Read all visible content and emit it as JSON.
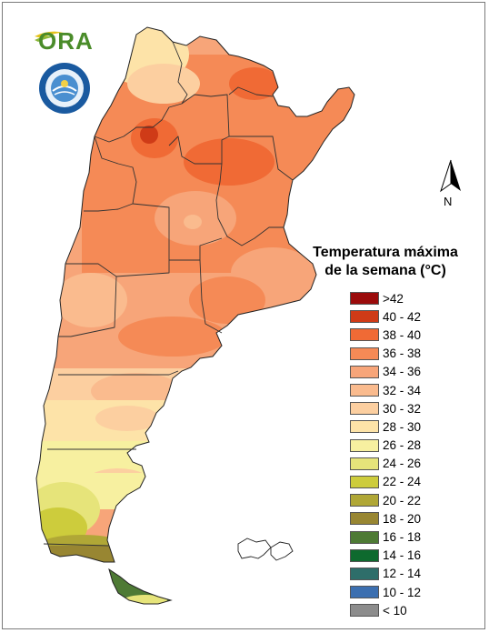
{
  "logos": {
    "ora_text": "ORA",
    "smn_icon": "smn-seal-icon",
    "smn_colors": {
      "blue": "#1a5aa0",
      "light": "#e8f1fa"
    }
  },
  "north_arrow": {
    "label": "N",
    "icon": "north-arrow-icon"
  },
  "legend": {
    "title_line1": "Temperatura máxima",
    "title_line2": "de la semana (°C)",
    "items": [
      {
        "label": ">42",
        "color": "#9b0b0b"
      },
      {
        "label": "40 - 42",
        "color": "#cf3b17"
      },
      {
        "label": "38 - 40",
        "color": "#f06a35"
      },
      {
        "label": "36 - 38",
        "color": "#f58a56"
      },
      {
        "label": "34 - 36",
        "color": "#f7a579"
      },
      {
        "label": "32 - 34",
        "color": "#fabb8e"
      },
      {
        "label": "30 - 32",
        "color": "#fccfa0"
      },
      {
        "label": "28 - 30",
        "color": "#fde3a8"
      },
      {
        "label": "26 - 28",
        "color": "#f7f0a0"
      },
      {
        "label": "24 - 26",
        "color": "#e6e47a"
      },
      {
        "label": "22 - 24",
        "color": "#cdcc3c"
      },
      {
        "label": "20 - 22",
        "color": "#b0a736"
      },
      {
        "label": "18 - 20",
        "color": "#988632"
      },
      {
        "label": "16 - 18",
        "color": "#4e7a35"
      },
      {
        "label": "14 - 16",
        "color": "#0e6a2e"
      },
      {
        "label": "12 - 14",
        "color": "#2e6e6a"
      },
      {
        "label": "10 - 12",
        "color": "#3c6fb0"
      },
      {
        "label": "< 10",
        "color": "#8c8c8c"
      }
    ]
  }
}
